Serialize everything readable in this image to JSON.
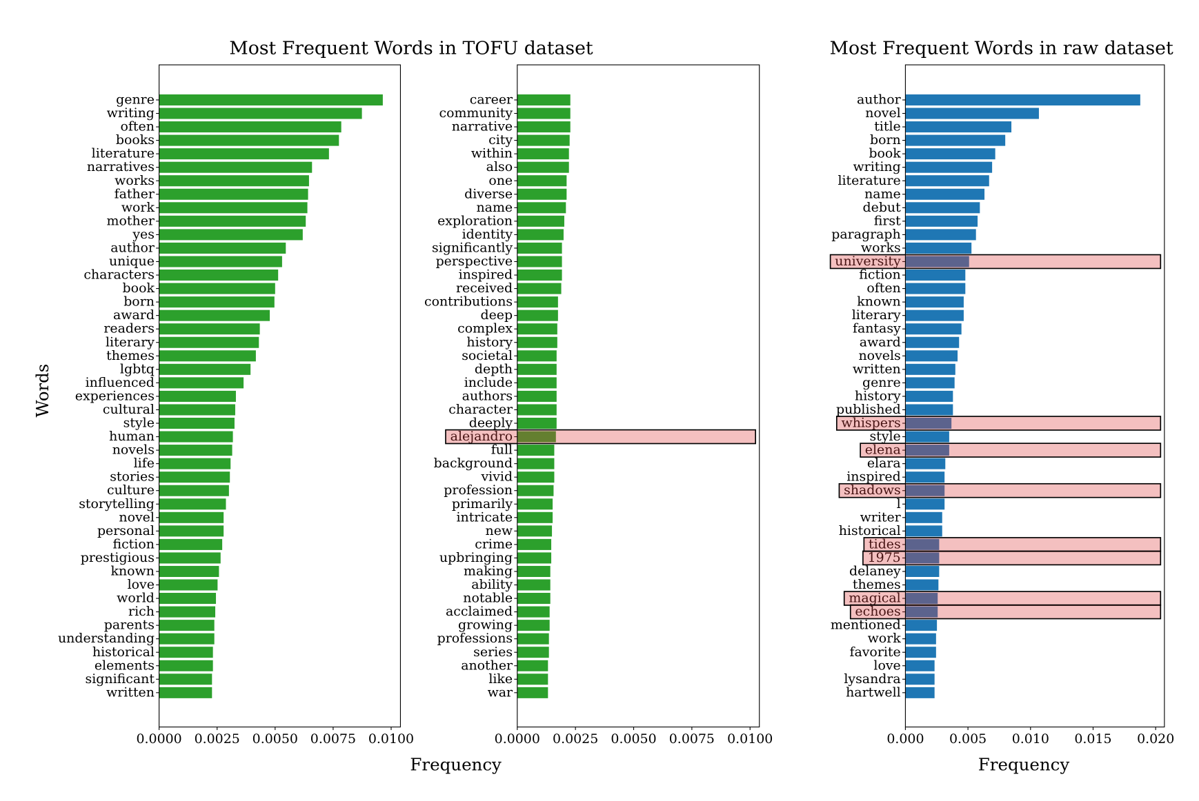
{
  "chart_data": [
    {
      "type": "bar",
      "orientation": "horizontal",
      "title": "Most Frequent Words in TOFU dataset",
      "xlabel": "Frequency",
      "ylabel": "Words",
      "xlim": [
        0,
        0.0104
      ],
      "xticks": [
        "0.0000",
        "0.0025",
        "0.0050",
        "0.0075",
        "0.0100"
      ],
      "xtick_values": [
        0,
        0.0025,
        0.005,
        0.0075,
        0.01
      ],
      "color": "#2ca02c",
      "categories": [
        "genre",
        "writing",
        "often",
        "books",
        "literature",
        "narratives",
        "works",
        "father",
        "work",
        "mother",
        "yes",
        "author",
        "unique",
        "characters",
        "book",
        "born",
        "award",
        "readers",
        "literary",
        "themes",
        "lgbtq",
        "influenced",
        "experiences",
        "cultural",
        "style",
        "human",
        "novels",
        "life",
        "stories",
        "culture",
        "storytelling",
        "novel",
        "personal",
        "fiction",
        "prestigious",
        "known",
        "love",
        "world",
        "rich",
        "parents",
        "understanding",
        "historical",
        "elements",
        "significant",
        "written"
      ],
      "values": [
        0.00964,
        0.00874,
        0.00785,
        0.00775,
        0.00732,
        0.00659,
        0.00646,
        0.00642,
        0.00639,
        0.00632,
        0.00619,
        0.00546,
        0.0053,
        0.00513,
        0.005,
        0.00497,
        0.00477,
        0.00434,
        0.0043,
        0.00417,
        0.00394,
        0.00364,
        0.00331,
        0.00328,
        0.00325,
        0.00318,
        0.00315,
        0.00308,
        0.00305,
        0.00301,
        0.00288,
        0.00278,
        0.00278,
        0.00272,
        0.00265,
        0.00258,
        0.00252,
        0.00245,
        0.00242,
        0.00238,
        0.00238,
        0.00232,
        0.00232,
        0.00228,
        0.00228
      ],
      "highlighted": []
    },
    {
      "type": "bar",
      "orientation": "horizontal",
      "xlim": [
        0,
        0.0104
      ],
      "xticks": [
        "0.0000",
        "0.0025",
        "0.0050",
        "0.0075",
        "0.0100"
      ],
      "xtick_values": [
        0,
        0.0025,
        0.005,
        0.0075,
        0.01
      ],
      "color": "#2ca02c",
      "categories": [
        "career",
        "community",
        "narrative",
        "city",
        "within",
        "also",
        "one",
        "diverse",
        "name",
        "exploration",
        "identity",
        "significantly",
        "perspective",
        "inspired",
        "received",
        "contributions",
        "deep",
        "complex",
        "history",
        "societal",
        "depth",
        "include",
        "authors",
        "character",
        "deeply",
        "alejandro",
        "full",
        "background",
        "vivid",
        "profession",
        "primarily",
        "intricate",
        "new",
        "crime",
        "upbringing",
        "making",
        "ability",
        "notable",
        "acclaimed",
        "growing",
        "professions",
        "series",
        "another",
        "like",
        "war"
      ],
      "values": [
        0.00228,
        0.00228,
        0.00228,
        0.00225,
        0.00222,
        0.00222,
        0.00212,
        0.00212,
        0.00209,
        0.00202,
        0.00199,
        0.00192,
        0.00192,
        0.00192,
        0.00189,
        0.00175,
        0.00175,
        0.00172,
        0.00172,
        0.00169,
        0.00169,
        0.00169,
        0.00169,
        0.00169,
        0.00169,
        0.00166,
        0.00159,
        0.00159,
        0.00159,
        0.00156,
        0.00152,
        0.00152,
        0.00149,
        0.00146,
        0.00146,
        0.00142,
        0.00142,
        0.00142,
        0.00139,
        0.00139,
        0.00136,
        0.00136,
        0.00132,
        0.00132,
        0.00132
      ],
      "highlighted": [
        "alejandro"
      ]
    },
    {
      "type": "bar",
      "orientation": "horizontal",
      "title": "Most Frequent Words in raw dataset",
      "xlabel": "Frequency",
      "xlim": [
        0,
        0.0207
      ],
      "xticks": [
        "0.000",
        "0.005",
        "0.010",
        "0.015",
        "0.020"
      ],
      "xtick_values": [
        0,
        0.005,
        0.01,
        0.015,
        0.02
      ],
      "color": "#1f77b4",
      "categories": [
        "author",
        "novel",
        "title",
        "born",
        "book",
        "writing",
        "literature",
        "name",
        "debut",
        "first",
        "paragraph",
        "works",
        "university",
        "fiction",
        "often",
        "known",
        "literary",
        "fantasy",
        "award",
        "novels",
        "written",
        "genre",
        "history",
        "published",
        "whispers",
        "style",
        "elena",
        "elara",
        "inspired",
        "shadows",
        "l",
        "writer",
        "historical",
        "tides",
        "1975",
        "delaney",
        "themes",
        "magical",
        "echoes",
        "mentioned",
        "work",
        "favorite",
        "love",
        "lysandra",
        "hartwell"
      ],
      "values": [
        0.01877,
        0.01067,
        0.00847,
        0.00798,
        0.00718,
        0.00693,
        0.00669,
        0.00632,
        0.00595,
        0.00577,
        0.00564,
        0.00528,
        0.00509,
        0.00479,
        0.00479,
        0.00466,
        0.00466,
        0.00448,
        0.00429,
        0.00417,
        0.00399,
        0.00393,
        0.0038,
        0.0038,
        0.00368,
        0.0035,
        0.0035,
        0.00319,
        0.00313,
        0.00313,
        0.00313,
        0.00294,
        0.00294,
        0.0027,
        0.0027,
        0.0027,
        0.00264,
        0.00258,
        0.00258,
        0.00252,
        0.00245,
        0.00245,
        0.00233,
        0.00233,
        0.00233
      ],
      "highlighted": [
        "university",
        "whispers",
        "elena",
        "shadows",
        "tides",
        "1975",
        "magical",
        "echoes"
      ]
    }
  ]
}
